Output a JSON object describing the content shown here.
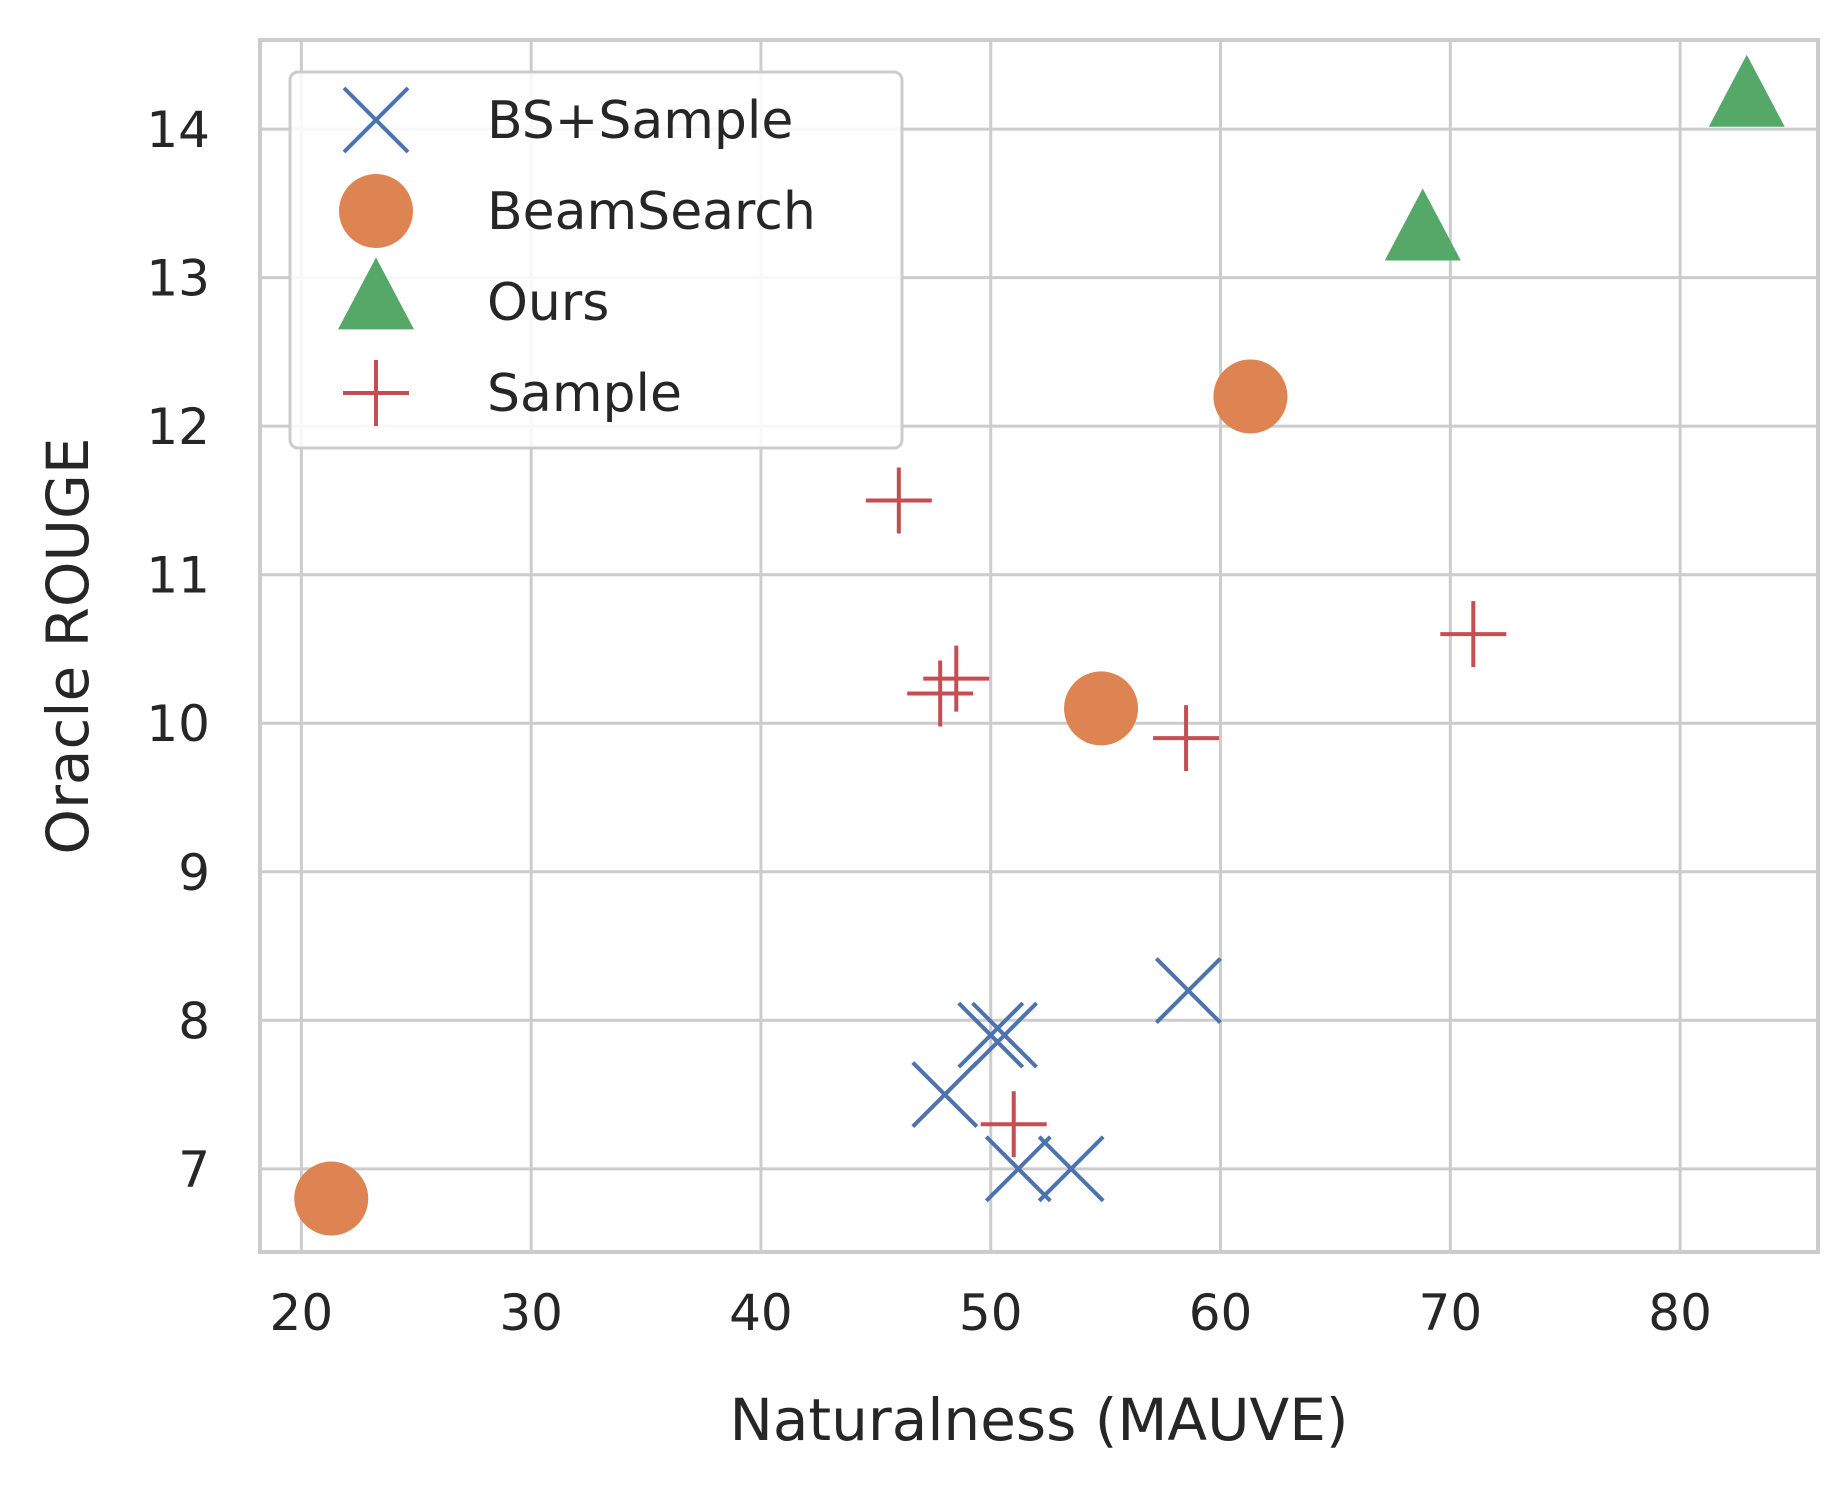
{
  "chart_data": {
    "type": "scatter",
    "title": "",
    "xlabel": "Naturalness (MAUVE)",
    "ylabel": "Oracle ROUGE",
    "xlim": [
      18.2,
      86.0
    ],
    "ylim": [
      6.44,
      14.6
    ],
    "xticks": [
      20,
      30,
      40,
      50,
      60,
      70,
      80
    ],
    "yticks": [
      7,
      8,
      9,
      10,
      11,
      12,
      13,
      14
    ],
    "grid": true,
    "legend_position": "top-left",
    "series": [
      {
        "name": "BS+Sample",
        "marker": "x",
        "color": "#4c72b0",
        "points": [
          [
            48.0,
            7.5
          ],
          [
            50.0,
            7.9
          ],
          [
            50.6,
            7.9
          ],
          [
            51.2,
            7.0
          ],
          [
            53.5,
            7.0
          ],
          [
            58.6,
            8.2
          ]
        ]
      },
      {
        "name": "BeamSearch",
        "marker": "circle",
        "color": "#dd8452",
        "points": [
          [
            21.3,
            6.8
          ],
          [
            54.8,
            10.1
          ],
          [
            61.3,
            12.2
          ]
        ]
      },
      {
        "name": "Ours",
        "marker": "triangle",
        "color": "#55a868",
        "points": [
          [
            68.8,
            13.3
          ],
          [
            82.9,
            14.2
          ]
        ]
      },
      {
        "name": "Sample",
        "marker": "plus",
        "color": "#c44e52",
        "points": [
          [
            46.0,
            11.5
          ],
          [
            47.8,
            10.2
          ],
          [
            48.5,
            10.3
          ],
          [
            51.0,
            7.3
          ],
          [
            58.5,
            9.9
          ],
          [
            71.0,
            10.6
          ]
        ]
      }
    ]
  }
}
